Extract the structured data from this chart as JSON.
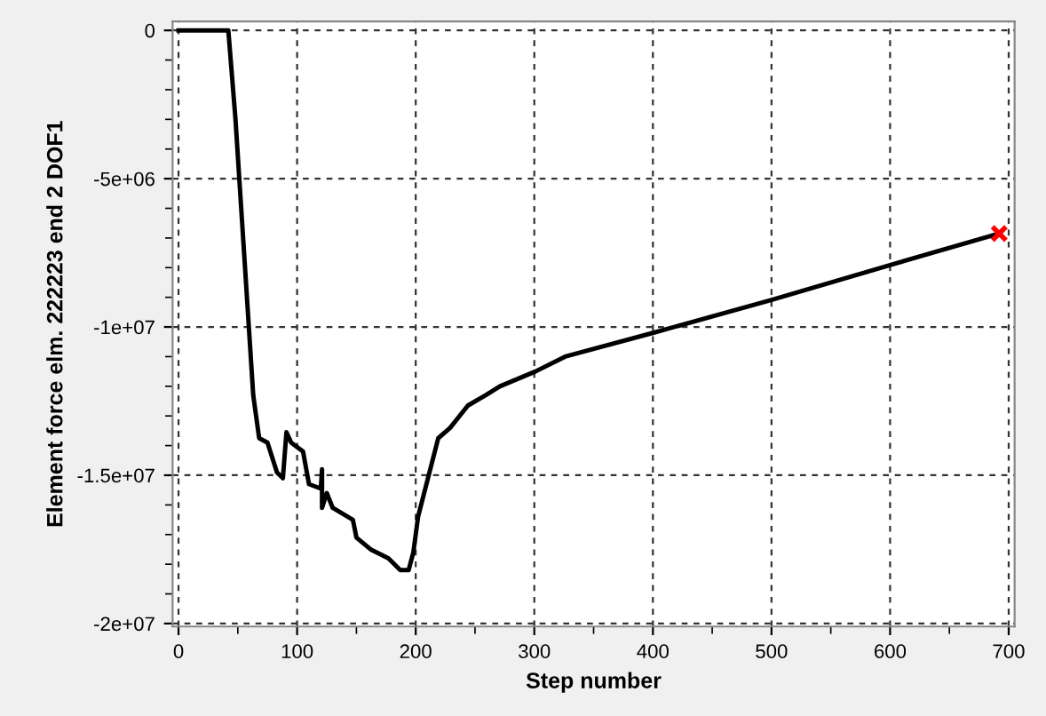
{
  "chart_data": {
    "type": "line",
    "xlabel": "Step number",
    "ylabel": "Element force elm. 222223 end 2 DOF1",
    "xlim": [
      -5,
      705
    ],
    "ylim": [
      -20100000,
      300000
    ],
    "xticks": [
      0,
      100,
      200,
      300,
      400,
      500,
      600,
      700
    ],
    "yticks": [
      {
        "value": 0,
        "label": "0"
      },
      {
        "value": -5000000,
        "label": "-5e+06"
      },
      {
        "value": -10000000,
        "label": "-1e+07"
      },
      {
        "value": -15000000,
        "label": "-1.5e+07"
      },
      {
        "value": -20000000,
        "label": "-2e+07"
      }
    ],
    "grid": true,
    "line_style": "solid",
    "marker": "none",
    "series": [
      {
        "color": "#000000",
        "x": [
          0,
          42,
          48,
          63,
          68,
          75,
          83,
          88,
          91,
          95,
          105,
          110,
          120,
          121,
          121,
          125,
          130,
          147,
          150,
          162,
          177,
          187,
          194,
          198,
          202,
          211,
          219,
          229,
          244,
          259,
          271,
          301,
          326,
          400,
          500,
          602,
          692
        ],
        "values": [
          0,
          0,
          -2980000,
          -12300000,
          -13750000,
          -13900000,
          -14900000,
          -15100000,
          -13550000,
          -13900000,
          -14200000,
          -15300000,
          -15450000,
          -14800000,
          -16100000,
          -15600000,
          -16100000,
          -16500000,
          -17100000,
          -17500000,
          -17800000,
          -18200000,
          -18200000,
          -17600000,
          -16400000,
          -15000000,
          -13750000,
          -13400000,
          -12650000,
          -12300000,
          -12000000,
          -11500000,
          -11000000,
          -10200000,
          -9090000,
          -7890000,
          -6850000
        ]
      },
      {
        "type": "scatter",
        "color": "#ff0000",
        "marker": "cross",
        "x": [
          692
        ],
        "values": [
          -6850000
        ]
      }
    ]
  }
}
